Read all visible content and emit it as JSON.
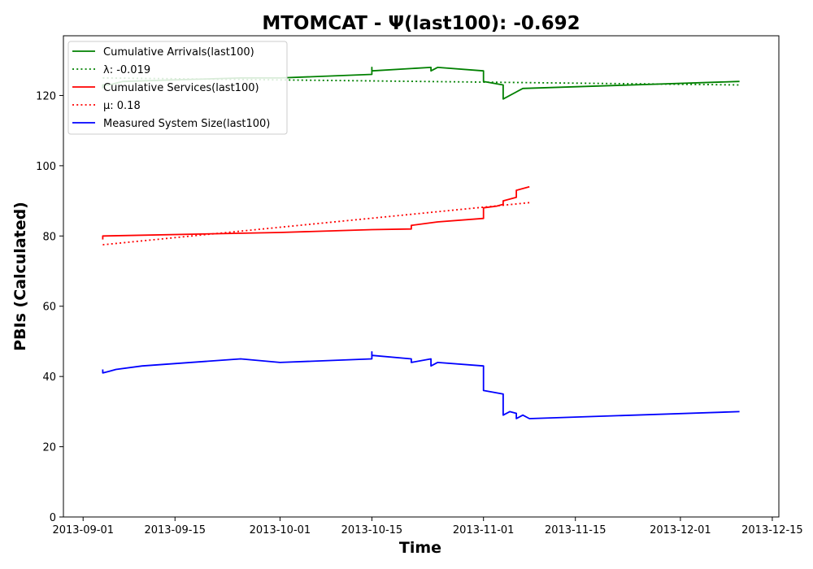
{
  "chart_data": {
    "type": "line",
    "title": "MTOMCAT -  Ψ(last100): -0.692",
    "xlabel": "Time",
    "ylabel": "PBIs (Calculated)",
    "xlim": [
      "2013-08-29",
      "2013-12-16"
    ],
    "ylim": [
      0,
      137
    ],
    "x_ticks": [
      "2013-09-01",
      "2013-09-15",
      "2013-10-01",
      "2013-10-15",
      "2013-11-01",
      "2013-11-15",
      "2013-12-01",
      "2013-12-15"
    ],
    "y_ticks": [
      0,
      20,
      40,
      60,
      80,
      100,
      120
    ],
    "grid": false,
    "legend_position": "top-left",
    "series": [
      {
        "name": "Cumulative Arrivals(last100)",
        "color": "#008000",
        "style": "solid",
        "points": [
          [
            "2013-09-04",
            122
          ],
          [
            "2013-09-04",
            123
          ],
          [
            "2013-09-05",
            123
          ],
          [
            "2013-09-07",
            124
          ],
          [
            "2013-09-25",
            125
          ],
          [
            "2013-10-01",
            125
          ],
          [
            "2013-10-15",
            126
          ],
          [
            "2013-10-15",
            128
          ],
          [
            "2013-10-15",
            127
          ],
          [
            "2013-10-24",
            128
          ],
          [
            "2013-10-24",
            127
          ],
          [
            "2013-10-25",
            128
          ],
          [
            "2013-11-01",
            127
          ],
          [
            "2013-11-01",
            124
          ],
          [
            "2013-11-04",
            123
          ],
          [
            "2013-11-04",
            119
          ],
          [
            "2013-11-07",
            122
          ],
          [
            "2013-12-10",
            124
          ]
        ]
      },
      {
        "name": "λ: -0.019",
        "color": "#008000",
        "style": "dotted",
        "points": [
          [
            "2013-09-04",
            125
          ],
          [
            "2013-12-10",
            123
          ]
        ]
      },
      {
        "name": "Cumulative Services(last100)",
        "color": "#ff0000",
        "style": "solid",
        "points": [
          [
            "2013-09-04",
            79
          ],
          [
            "2013-09-04",
            80
          ],
          [
            "2013-10-01",
            81
          ],
          [
            "2013-10-15",
            81.8
          ],
          [
            "2013-10-21",
            82
          ],
          [
            "2013-10-21",
            83
          ],
          [
            "2013-10-25",
            84
          ],
          [
            "2013-11-01",
            85
          ],
          [
            "2013-11-01",
            88
          ],
          [
            "2013-11-03",
            88.5
          ],
          [
            "2013-11-04",
            89
          ],
          [
            "2013-11-04",
            90
          ],
          [
            "2013-11-06",
            91
          ],
          [
            "2013-11-06",
            93
          ],
          [
            "2013-11-08",
            94
          ]
        ]
      },
      {
        "name": "μ: 0.18",
        "color": "#ff0000",
        "style": "dotted",
        "points": [
          [
            "2013-09-04",
            77.5
          ],
          [
            "2013-11-08",
            89.5
          ]
        ]
      },
      {
        "name": "Measured System Size(last100)",
        "color": "#0000ff",
        "style": "solid",
        "points": [
          [
            "2013-09-04",
            42
          ],
          [
            "2013-09-04",
            41
          ],
          [
            "2013-09-05",
            41.5
          ],
          [
            "2013-09-06",
            42
          ],
          [
            "2013-09-10",
            43
          ],
          [
            "2013-09-25",
            45
          ],
          [
            "2013-10-01",
            44
          ],
          [
            "2013-10-15",
            45
          ],
          [
            "2013-10-15",
            47
          ],
          [
            "2013-10-15",
            46
          ],
          [
            "2013-10-21",
            45
          ],
          [
            "2013-10-21",
            44
          ],
          [
            "2013-10-24",
            45
          ],
          [
            "2013-10-24",
            43
          ],
          [
            "2013-10-25",
            44
          ],
          [
            "2013-11-01",
            43
          ],
          [
            "2013-11-01",
            37
          ],
          [
            "2013-11-01",
            36
          ],
          [
            "2013-11-04",
            35
          ],
          [
            "2013-11-04",
            29
          ],
          [
            "2013-11-05",
            30
          ],
          [
            "2013-11-06",
            29.5
          ],
          [
            "2013-11-06",
            28
          ],
          [
            "2013-11-07",
            29
          ],
          [
            "2013-11-08",
            28
          ],
          [
            "2013-12-10",
            30
          ]
        ]
      }
    ]
  }
}
